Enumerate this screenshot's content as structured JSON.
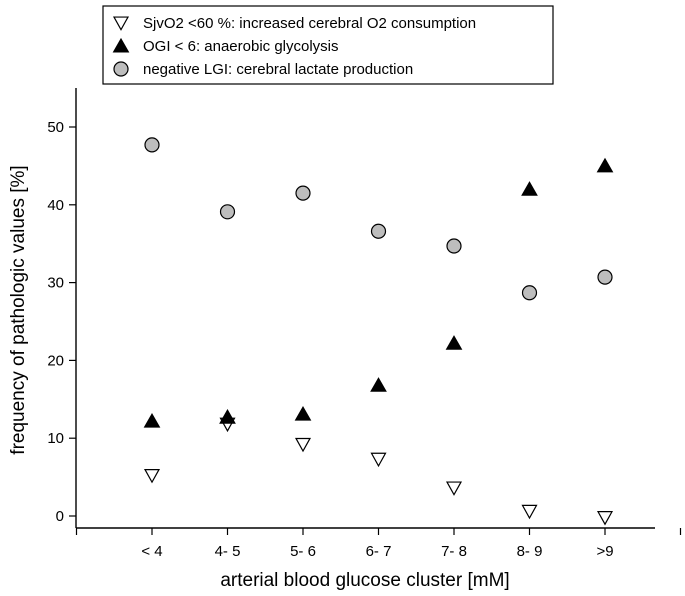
{
  "chart_data": {
    "type": "scatter",
    "title": "",
    "xlabel": "arterial blood glucose cluster [mM]",
    "ylabel": "frequency of pathologic values [%]",
    "categories": [
      "< 4",
      "4- 5",
      "5- 6",
      "6- 7",
      "7- 8",
      "8- 9",
      ">9"
    ],
    "ylim": [
      -2,
      55
    ],
    "yticks": [
      0,
      10,
      20,
      30,
      40,
      50
    ],
    "grid": false,
    "legend_position": "top-center",
    "series": [
      {
        "name": "SjvO2 <60 %: increased cerebral O2 consumption",
        "marker": "triangle-down-open",
        "color": "#000000",
        "values": [
          5.2,
          11.8,
          9.2,
          7.3,
          3.6,
          0.6,
          -0.2
        ]
      },
      {
        "name": "OGI < 6: anaerobic glycolysis",
        "marker": "triangle-up-filled",
        "color": "#000000",
        "values": [
          12.2,
          12.7,
          13.1,
          16.8,
          22.2,
          42.0,
          45.0
        ]
      },
      {
        "name": "negative LGI: cerebral lactate production",
        "marker": "circle-filled",
        "color": "#bdbdbd",
        "values": [
          47.7,
          39.1,
          41.5,
          36.6,
          34.7,
          28.7,
          30.7
        ]
      }
    ]
  }
}
